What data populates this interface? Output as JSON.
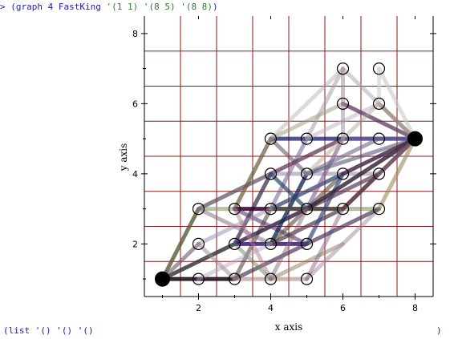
{
  "repl": {
    "prompt": ">",
    "input_code": "(graph 4 FastKing '(1 1) '(8 5) '(8 8))",
    "input_parts": [
      "(graph 4 FastKing ",
      "'(1 1)",
      " ",
      "'(8 5)",
      " ",
      "'(8 8)",
      ")"
    ],
    "result_text": "(list '() '() '()",
    "result_close": ")"
  },
  "chart_data": {
    "type": "scatter",
    "xlabel": "x axis",
    "ylabel": "y axis",
    "xlim": [
      0.5,
      8.5
    ],
    "ylim": [
      0.5,
      8.5
    ],
    "xticks": [
      2,
      4,
      6,
      8
    ],
    "yticks": [
      2,
      4,
      6,
      8
    ],
    "grid": true,
    "grid_color": "#8b1a1a",
    "grid_lines": [
      1.5,
      2.5,
      3.5,
      4.5,
      5.5,
      6.5,
      7.5
    ],
    "endpoints": [
      [
        1,
        1
      ],
      [
        8,
        5
      ]
    ],
    "nodes": [
      [
        2,
        1
      ],
      [
        3,
        1
      ],
      [
        4,
        1
      ],
      [
        5,
        1
      ],
      [
        2,
        2
      ],
      [
        3,
        2
      ],
      [
        4,
        2
      ],
      [
        5,
        2
      ],
      [
        2,
        3
      ],
      [
        3,
        3
      ],
      [
        4,
        3
      ],
      [
        5,
        3
      ],
      [
        6,
        3
      ],
      [
        7,
        3
      ],
      [
        4,
        4
      ],
      [
        5,
        4
      ],
      [
        6,
        4
      ],
      [
        7,
        4
      ],
      [
        4,
        5
      ],
      [
        5,
        5
      ],
      [
        6,
        5
      ],
      [
        7,
        5
      ],
      [
        6,
        6
      ],
      [
        7,
        6
      ],
      [
        6,
        7
      ],
      [
        7,
        7
      ]
    ],
    "edges": [
      {
        "from": [
          1,
          1
        ],
        "to": [
          3,
          1
        ],
        "color": "#2b1a22",
        "opacity": 0.95
      },
      {
        "from": [
          1,
          1
        ],
        "to": [
          2,
          3
        ],
        "color": "#5b5a3a",
        "opacity": 0.8
      },
      {
        "from": [
          1,
          1
        ],
        "to": [
          3,
          2
        ],
        "color": "#3a3a3a",
        "opacity": 0.85
      },
      {
        "from": [
          1,
          1
        ],
        "to": [
          2,
          2
        ],
        "color": "#6a5a6a",
        "opacity": 0.6
      },
      {
        "from": [
          3,
          1
        ],
        "to": [
          5,
          2
        ],
        "color": "#4a3a5a",
        "opacity": 0.7
      },
      {
        "from": [
          3,
          1
        ],
        "to": [
          4,
          3
        ],
        "color": "#5a4a4a",
        "opacity": 0.6
      },
      {
        "from": [
          3,
          1
        ],
        "to": [
          5,
          1
        ],
        "color": "#a07070",
        "opacity": 0.5
      },
      {
        "from": [
          3,
          2
        ],
        "to": [
          5,
          3
        ],
        "color": "#3a2a4a",
        "opacity": 0.85
      },
      {
        "from": [
          3,
          2
        ],
        "to": [
          4,
          4
        ],
        "color": "#4b3b5b",
        "opacity": 0.8
      },
      {
        "from": [
          3,
          2
        ],
        "to": [
          5,
          2
        ],
        "color": "#3a1a6a",
        "opacity": 0.85
      },
      {
        "from": [
          3,
          2
        ],
        "to": [
          4,
          1
        ],
        "color": "#6a8a6a",
        "opacity": 0.5
      },
      {
        "from": [
          2,
          3
        ],
        "to": [
          4,
          4
        ],
        "color": "#5a4a5a",
        "opacity": 0.7
      },
      {
        "from": [
          2,
          3
        ],
        "to": [
          3,
          3
        ],
        "color": "#8a9a6a",
        "opacity": 0.6
      },
      {
        "from": [
          2,
          3
        ],
        "to": [
          4,
          2
        ],
        "color": "#7a6a7a",
        "opacity": 0.5
      },
      {
        "from": [
          3,
          3
        ],
        "to": [
          4,
          5
        ],
        "color": "#6a5a3a",
        "opacity": 0.7
      },
      {
        "from": [
          3,
          3
        ],
        "to": [
          6,
          3
        ],
        "color": "#3a0a3a",
        "opacity": 0.9
      },
      {
        "from": [
          3,
          3
        ],
        "to": [
          5,
          2
        ],
        "color": "#5a3a6a",
        "opacity": 0.6
      },
      {
        "from": [
          3,
          3
        ],
        "to": [
          4,
          1
        ],
        "color": "#b08090",
        "opacity": 0.5
      },
      {
        "from": [
          4,
          1
        ],
        "to": [
          6,
          2
        ],
        "color": "#8a7a5a",
        "opacity": 0.5
      },
      {
        "from": [
          4,
          2
        ],
        "to": [
          5,
          4
        ],
        "color": "#1a2a5a",
        "opacity": 0.8
      },
      {
        "from": [
          4,
          2
        ],
        "to": [
          6,
          3
        ],
        "color": "#4a3a4a",
        "opacity": 0.7
      },
      {
        "from": [
          4,
          2
        ],
        "to": [
          6,
          4
        ],
        "color": "#5a4a3a",
        "opacity": 0.6
      },
      {
        "from": [
          4,
          3
        ],
        "to": [
          6,
          4
        ],
        "color": "#2a3a6a",
        "opacity": 0.7
      },
      {
        "from": [
          4,
          3
        ],
        "to": [
          5,
          5
        ],
        "color": "#7a6a9a",
        "opacity": 0.6
      },
      {
        "from": [
          4,
          3
        ],
        "to": [
          7,
          3
        ],
        "color": "#6a7a4a",
        "opacity": 0.5
      },
      {
        "from": [
          4,
          4
        ],
        "to": [
          6,
          5
        ],
        "color": "#5a2a4a",
        "opacity": 0.7
      },
      {
        "from": [
          4,
          4
        ],
        "to": [
          7,
          4
        ],
        "color": "#8a7a9a",
        "opacity": 0.5
      },
      {
        "from": [
          4,
          4
        ],
        "to": [
          5,
          3
        ],
        "color": "#2a4a6a",
        "opacity": 0.7
      },
      {
        "from": [
          4,
          5
        ],
        "to": [
          8,
          5
        ],
        "color": "#1a1a6a",
        "opacity": 0.75
      },
      {
        "from": [
          4,
          5
        ],
        "to": [
          6,
          6
        ],
        "color": "#9a9a7a",
        "opacity": 0.5
      },
      {
        "from": [
          4,
          5
        ],
        "to": [
          5,
          4
        ],
        "color": "#6a5a6a",
        "opacity": 0.6
      },
      {
        "from": [
          5,
          1
        ],
        "to": [
          7,
          3
        ],
        "color": "#a08a9a",
        "opacity": 0.5
      },
      {
        "from": [
          5,
          1
        ],
        "to": [
          6,
          3
        ],
        "color": "#8a6a8a",
        "opacity": 0.5
      },
      {
        "from": [
          5,
          2
        ],
        "to": [
          7,
          3
        ],
        "color": "#4a3a5a",
        "opacity": 0.7
      },
      {
        "from": [
          5,
          2
        ],
        "to": [
          6,
          4
        ],
        "color": "#3a4a7a",
        "opacity": 0.7
      },
      {
        "from": [
          5,
          3
        ],
        "to": [
          7,
          4
        ],
        "color": "#5a3a5a",
        "opacity": 0.7
      },
      {
        "from": [
          5,
          3
        ],
        "to": [
          6,
          5
        ],
        "color": "#7a5a8a",
        "opacity": 0.6
      },
      {
        "from": [
          5,
          3
        ],
        "to": [
          8,
          5
        ],
        "color": "#3a2a3a",
        "opacity": 0.85
      },
      {
        "from": [
          5,
          4
        ],
        "to": [
          7,
          5
        ],
        "color": "#6a6a8a",
        "opacity": 0.6
      },
      {
        "from": [
          5,
          4
        ],
        "to": [
          8,
          5
        ],
        "color": "#5a5a7a",
        "opacity": 0.6
      },
      {
        "from": [
          5,
          5
        ],
        "to": [
          7,
          6
        ],
        "color": "#c0b0c0",
        "opacity": 0.5
      },
      {
        "from": [
          5,
          5
        ],
        "to": [
          6,
          7
        ],
        "color": "#a09aa0",
        "opacity": 0.5
      },
      {
        "from": [
          6,
          3
        ],
        "to": [
          8,
          5
        ],
        "color": "#5a2a3a",
        "opacity": 0.85
      },
      {
        "from": [
          6,
          3
        ],
        "to": [
          7,
          4
        ],
        "color": "#6a4a5a",
        "opacity": 0.6
      },
      {
        "from": [
          6,
          4
        ],
        "to": [
          8,
          5
        ],
        "color": "#4a2a4a",
        "opacity": 0.85
      },
      {
        "from": [
          6,
          5
        ],
        "to": [
          8,
          5
        ],
        "color": "#6a5a9a",
        "opacity": 0.6
      },
      {
        "from": [
          6,
          6
        ],
        "to": [
          8,
          5
        ],
        "color": "#5a3a5a",
        "opacity": 0.75
      },
      {
        "from": [
          6,
          7
        ],
        "to": [
          8,
          5
        ],
        "color": "#b0a0b0",
        "opacity": 0.5
      },
      {
        "from": [
          7,
          7
        ],
        "to": [
          8,
          5
        ],
        "color": "#c8c8c8",
        "opacity": 0.6
      },
      {
        "from": [
          7,
          3
        ],
        "to": [
          8,
          5
        ],
        "color": "#9a8a5a",
        "opacity": 0.6
      },
      {
        "from": [
          7,
          4
        ],
        "to": [
          8,
          5
        ],
        "color": "#7a6a7a",
        "opacity": 0.6
      },
      {
        "from": [
          7,
          6
        ],
        "to": [
          8,
          5
        ],
        "color": "#8a7a6a",
        "opacity": 0.6
      },
      {
        "from": [
          6,
          6
        ],
        "to": [
          6,
          7
        ],
        "color": "#a08080",
        "opacity": 0.5
      },
      {
        "from": [
          7,
          6
        ],
        "to": [
          7,
          7
        ],
        "color": "#d0d0d0",
        "opacity": 0.6
      },
      {
        "from": [
          6,
          5
        ],
        "to": [
          6,
          6
        ],
        "color": "#9a8a9a",
        "opacity": 0.5
      },
      {
        "from": [
          4,
          5
        ],
        "to": [
          6,
          7
        ],
        "color": "#b8a8b0",
        "opacity": 0.45
      },
      {
        "from": [
          2,
          2
        ],
        "to": [
          4,
          3
        ],
        "color": "#9a8aaa",
        "opacity": 0.5
      },
      {
        "from": [
          2,
          2
        ],
        "to": [
          3,
          1
        ],
        "color": "#a08090",
        "opacity": 0.5
      },
      {
        "from": [
          2,
          1
        ],
        "to": [
          4,
          2
        ],
        "color": "#b0a0c0",
        "opacity": 0.45
      },
      {
        "from": [
          4,
          1
        ],
        "to": [
          5,
          3
        ],
        "color": "#8a6a7a",
        "opacity": 0.5
      },
      {
        "from": [
          5,
          4
        ],
        "to": [
          7,
          6
        ],
        "color": "#b0a090",
        "opacity": 0.45
      }
    ]
  }
}
